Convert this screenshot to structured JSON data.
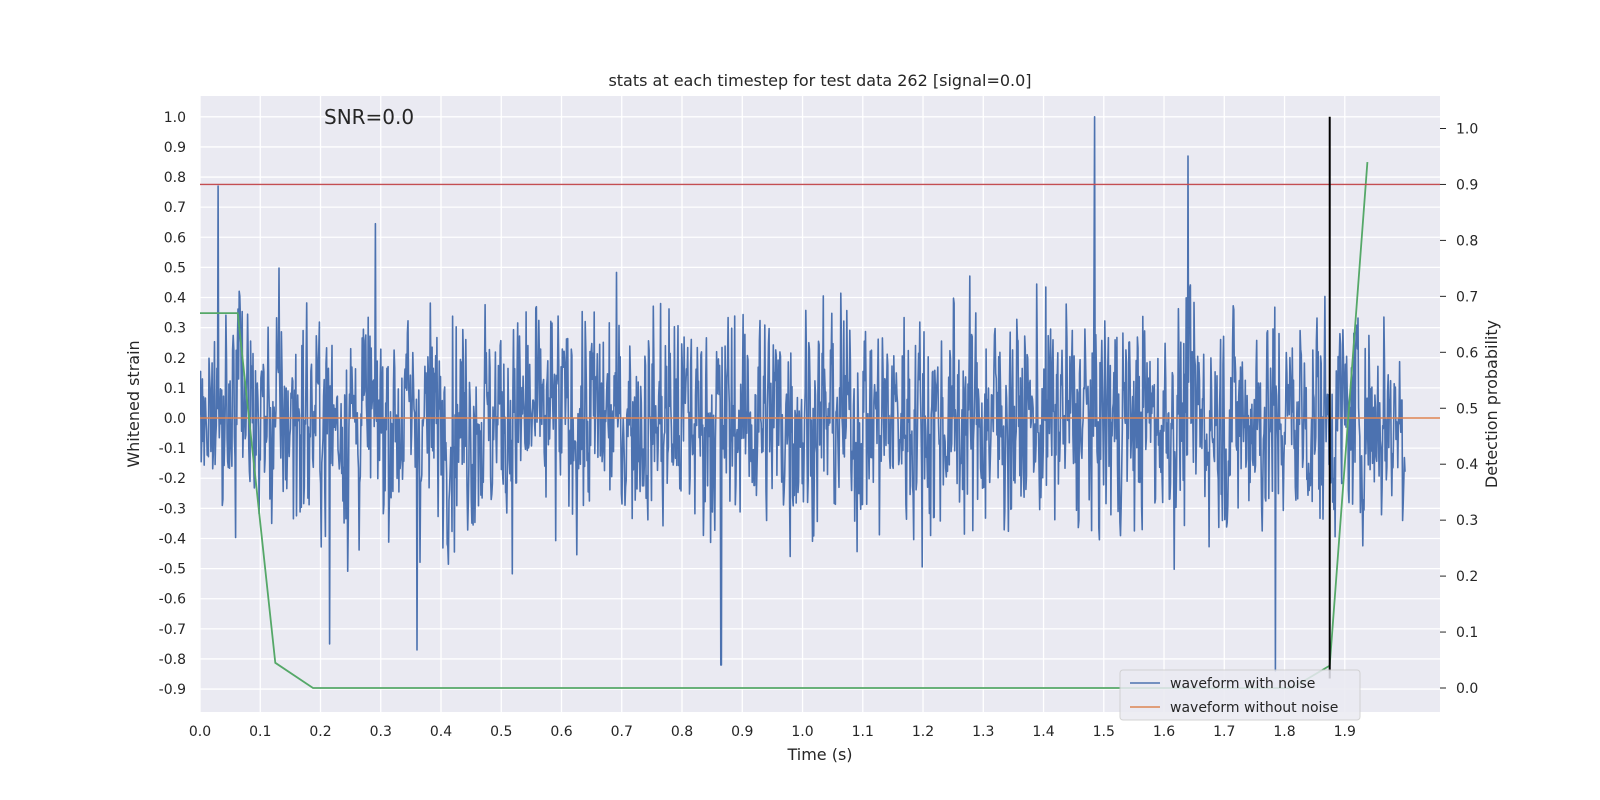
{
  "chart_data": {
    "type": "line",
    "title": "stats at each timestep for test data 262 [signal=0.0]",
    "annotation": "SNR=0.0",
    "xlabel": "Time (s)",
    "ylabel": "Whitened strain",
    "y2label": "Detection probability",
    "xlim": [
      0.0,
      2.0
    ],
    "ylim": [
      -0.96,
      1.1
    ],
    "y2lim": [
      -0.045,
      1.045
    ],
    "x_ticks": [
      "0.0",
      "0.1",
      "0.2",
      "0.3",
      "0.4",
      "0.5",
      "0.6",
      "0.7",
      "0.8",
      "0.9",
      "1.0",
      "1.1",
      "1.2",
      "1.3",
      "1.4",
      "1.5",
      "1.6",
      "1.7",
      "1.8",
      "1.9"
    ],
    "y_ticks": [
      "1.0",
      "0.9",
      "0.8",
      "0.7",
      "0.6",
      "0.5",
      "0.4",
      "0.3",
      "0.2",
      "0.1",
      "0.0",
      "-0.1",
      "-0.2",
      "-0.3",
      "-0.4",
      "-0.5",
      "-0.6",
      "-0.7",
      "-0.8",
      "-0.9"
    ],
    "y2_ticks": [
      "1.0",
      "0.9",
      "0.8",
      "0.7",
      "0.6",
      "0.5",
      "0.4",
      "0.3",
      "0.2",
      "0.1",
      "0.0"
    ],
    "grid": true,
    "legend_placement": "lower-right",
    "series": [
      {
        "name": "waveform with noise",
        "color": "#4c72b0",
        "axis": "left",
        "style": "dense noise trace, approx. 4096 samples between -0.82 and 1.0",
        "x_range": [
          0.0,
          2.0
        ],
        "notable_peaks": [
          [
            0.03,
            0.77
          ],
          [
            1.485,
            1.0
          ],
          [
            1.64,
            0.87
          ],
          [
            0.865,
            -0.82
          ],
          [
            1.785,
            -0.84
          ],
          [
            0.215,
            -0.75
          ],
          [
            0.36,
            -0.77
          ]
        ]
      },
      {
        "name": "waveform without noise",
        "color": "#dd8452",
        "axis": "left",
        "x": [
          0.0,
          2.0
        ],
        "y": [
          0.0,
          0.0
        ]
      },
      {
        "color": "#55a868",
        "axis": "right",
        "x": [
          0.0,
          0.0625,
          0.125,
          0.1875,
          0.25,
          1.8125,
          1.875,
          1.9375
        ],
        "y": [
          0.67,
          0.67,
          0.045,
          0.0,
          0.0,
          0.0,
          0.04,
          0.94
        ]
      }
    ],
    "hlines": [
      {
        "y2": 0.9,
        "color": "#c44e52"
      }
    ],
    "vlines": [
      {
        "x": 1.875,
        "y_from": -0.865,
        "y_to": 1.0,
        "color": "#000000"
      }
    ]
  }
}
